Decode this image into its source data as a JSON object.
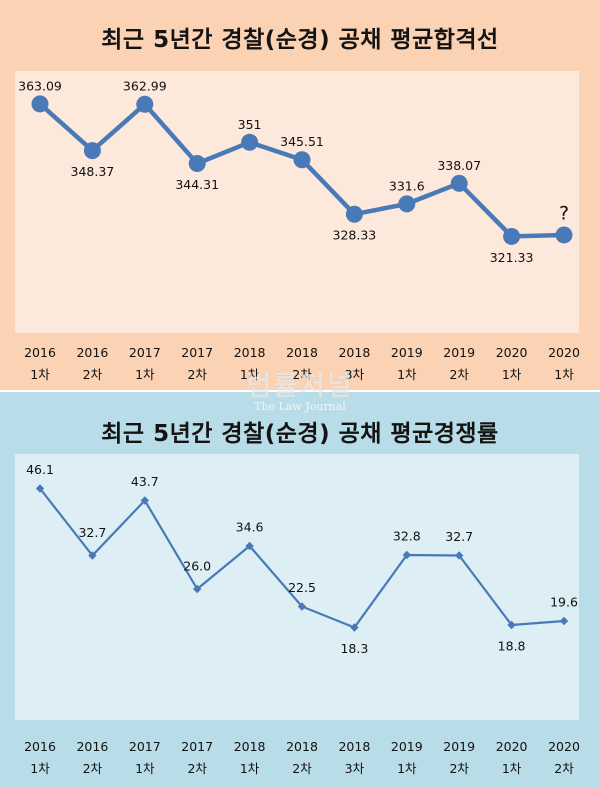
{
  "watermark": {
    "text": "법률저널",
    "subtext": "The Law Journal"
  },
  "chart_data": [
    {
      "type": "line",
      "title": "최근 5년간 경찰(순경) 공채 평균합격선",
      "categories": [
        [
          "2016",
          "1차"
        ],
        [
          "2016",
          "2차"
        ],
        [
          "2017",
          "1차"
        ],
        [
          "2017",
          "2차"
        ],
        [
          "2018",
          "1차"
        ],
        [
          "2018",
          "2차"
        ],
        [
          "2018",
          "3차"
        ],
        [
          "2019",
          "1차"
        ],
        [
          "2019",
          "2차"
        ],
        [
          "2020",
          "1차"
        ],
        [
          "2020",
          "1차"
        ]
      ],
      "values": [
        363.09,
        348.37,
        362.99,
        344.31,
        351,
        345.51,
        328.33,
        331.6,
        338.07,
        321.33,
        321.8
      ],
      "labels": [
        "363.09",
        "348.37",
        "362.99",
        "344.31",
        "351",
        "345.51",
        "328.33",
        "331.6",
        "338.07",
        "321.33",
        "?"
      ],
      "ylim": [
        295,
        370
      ],
      "marker": "circle",
      "line_color": "#4a79b7",
      "grid": false
    },
    {
      "type": "line",
      "title": "최근 5년간 경찰(순경) 공채 평균경쟁률",
      "categories": [
        [
          "2016",
          "1차"
        ],
        [
          "2016",
          "2차"
        ],
        [
          "2017",
          "1차"
        ],
        [
          "2017",
          "2차"
        ],
        [
          "2018",
          "1차"
        ],
        [
          "2018",
          "2차"
        ],
        [
          "2018",
          "3차"
        ],
        [
          "2019",
          "1차"
        ],
        [
          "2019",
          "2차"
        ],
        [
          "2020",
          "1차"
        ],
        [
          "2020",
          "2차"
        ]
      ],
      "values": [
        46.1,
        32.7,
        43.7,
        26.0,
        34.6,
        22.5,
        18.3,
        32.8,
        32.7,
        18.8,
        19.6
      ],
      "labels": [
        "46.1",
        "32.7",
        "43.7",
        "26.0",
        "34.6",
        "22.5",
        "18.3",
        "32.8",
        "32.7",
        "18.8",
        "19.6"
      ],
      "ylim": [
        0,
        50
      ],
      "marker": "diamond",
      "line_color": "#4a79b7",
      "grid": false
    }
  ]
}
